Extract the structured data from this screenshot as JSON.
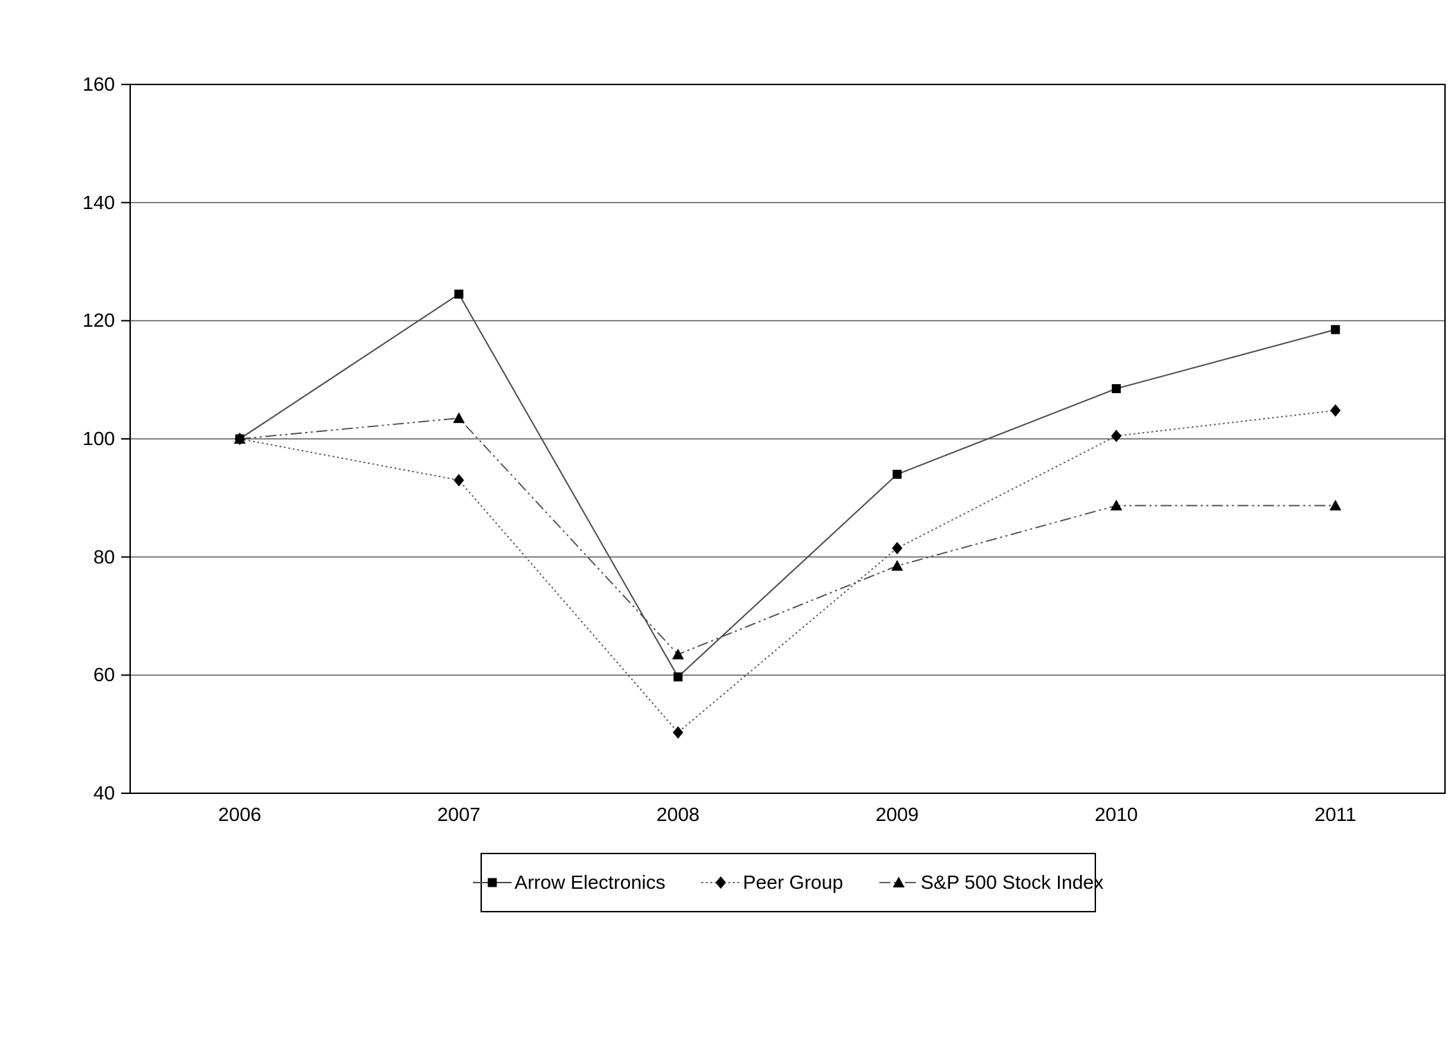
{
  "chart_data": {
    "type": "line",
    "categories": [
      "2006",
      "2007",
      "2008",
      "2009",
      "2010",
      "2011"
    ],
    "series": [
      {
        "name": "Arrow Electronics",
        "marker": "square",
        "line_style": "solid",
        "values": [
          100,
          124.5,
          59.7,
          94,
          108.5,
          118.5
        ]
      },
      {
        "name": "Peer Group",
        "marker": "diamond",
        "line_style": "dotted",
        "values": [
          100,
          93,
          50.3,
          81.5,
          100.5,
          104.8
        ]
      },
      {
        "name": "S&P 500 Stock Index",
        "marker": "triangle",
        "line_style": "dash-dot-dot",
        "values": [
          100,
          103.5,
          63.5,
          78.5,
          88.7,
          88.7
        ]
      }
    ],
    "title": "",
    "xlabel": "",
    "ylabel": "",
    "ylim": [
      40,
      160
    ],
    "yticks": [
      40,
      60,
      80,
      100,
      120,
      140,
      160
    ],
    "grid": "horizontal",
    "legend_position": "bottom",
    "colors": {
      "series_line": "#4d4d4d",
      "marker": "#000000",
      "gridline": "#595959",
      "plot_border": "#000000",
      "text": "#000000",
      "background": "#ffffff"
    }
  }
}
